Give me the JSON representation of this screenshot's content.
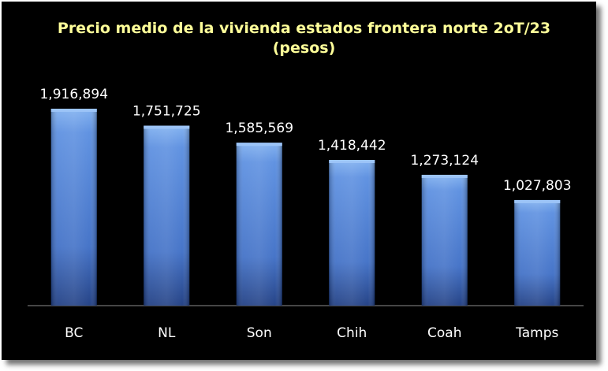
{
  "chart_data": {
    "type": "bar",
    "title": "Precio medio de la vivienda estados frontera norte 2oT/23",
    "subtitle": "(pesos)",
    "categories": [
      "BC",
      "NL",
      "Son",
      "Chih",
      "Coah",
      "Tamps"
    ],
    "values": [
      1916894,
      1751725,
      1585569,
      1418442,
      1273124,
      1027803
    ],
    "value_labels": [
      "1,916,894",
      "1,751,725",
      "1,585,569",
      "1,418,442",
      "1,273,124",
      "1,027,803"
    ],
    "xlabel": "",
    "ylabel": "",
    "ylim": [
      0,
      2000000
    ],
    "grid": false,
    "legend": "none",
    "colors": {
      "background": "#000000",
      "title": "#ffff99",
      "text": "#ffffff",
      "bar_top": "#6fa2e8",
      "bar_mid": "#4f81d6",
      "bar_bottom": "#1f3f85",
      "axis": "#8c8c8c"
    }
  }
}
